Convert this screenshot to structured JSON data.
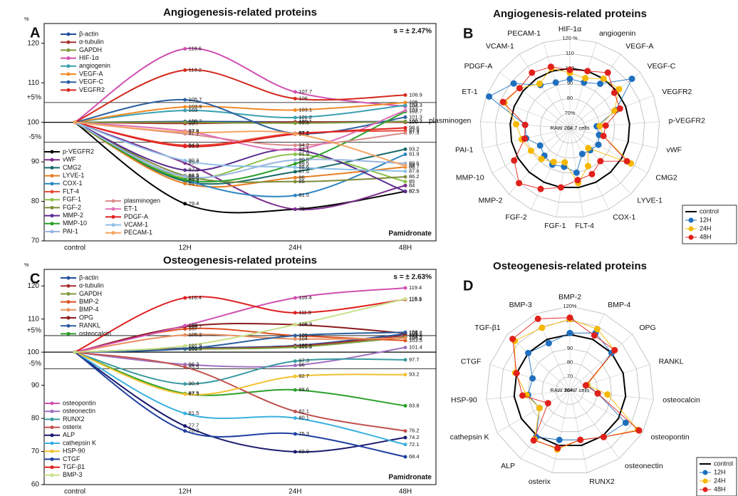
{
  "chart_data": [
    {
      "type": "line",
      "title": "Angiogenesis-related proteins",
      "panel_label": "A",
      "note": "s = ± 2.47%",
      "treatment": "Pamidronate",
      "y_unit": "%",
      "categories": [
        "control",
        "12H",
        "24H",
        "48H"
      ],
      "ylim": [
        70,
        125
      ],
      "yticks": [
        70,
        80,
        90,
        100,
        110,
        120
      ],
      "baseline": 100,
      "ref_lines": [
        {
          "value": 105,
          "label": "+5%"
        },
        {
          "value": 95,
          "label": "-5%"
        }
      ],
      "series": [
        {
          "name": "β-actin",
          "color": "#1f4e9a",
          "values": [
            100,
            100.2,
            100.1,
            100.2
          ]
        },
        {
          "name": "α-tubulin",
          "color": "#a83232",
          "values": [
            100,
            99.7,
            100.1,
            100.0
          ]
        },
        {
          "name": "GAPDH",
          "color": "#7a9a3a",
          "values": [
            100,
            100.0,
            99.8,
            100.2
          ]
        },
        {
          "name": "HIF-1α",
          "color": "#d050b0",
          "values": [
            100,
            118.6,
            107.7,
            104.0
          ]
        },
        {
          "name": "angiogenin",
          "color": "#3aa0b0",
          "values": [
            100,
            103.0,
            101.2,
            104.3
          ]
        },
        {
          "name": "VEGF-A",
          "color": "#f08a24",
          "values": [
            100,
            103.9,
            103.1,
            105.0
          ]
        },
        {
          "name": "VEGF-C",
          "color": "#2b5f9e",
          "values": [
            100,
            105.7,
            97.2,
            101.3
          ]
        },
        {
          "name": "VEGFR2",
          "color": "#d42a1e",
          "values": [
            100,
            113.2,
            106.0,
            106.9
          ]
        },
        {
          "name": "p-VEGFR2",
          "color": "#000000",
          "values": [
            100,
            79.4,
            78.0,
            82.5
          ]
        },
        {
          "name": "vWF",
          "color": "#7b2c8f",
          "values": [
            100,
            89.7,
            78.0,
            84.0
          ]
        },
        {
          "name": "CMG2",
          "color": "#1a6b6b",
          "values": [
            100,
            85.1,
            87.5,
            93.2
          ]
        },
        {
          "name": "LYVE-1",
          "color": "#e67e22",
          "values": [
            100,
            84.5,
            86.0,
            88.7
          ]
        },
        {
          "name": "COX-1",
          "color": "#2e86c1",
          "values": [
            100,
            85.5,
            81.5,
            91.9
          ]
        },
        {
          "name": "FLT-4",
          "color": "#e74c3c",
          "values": [
            100,
            94.2,
            97.2,
            97.9
          ]
        },
        {
          "name": "FGF-1",
          "color": "#8bc34a",
          "values": [
            100,
            85.9,
            91.9,
            85.0
          ]
        },
        {
          "name": "FGF-2",
          "color": "#7f8c3a",
          "values": [
            100,
            86.5,
            85.0,
            86.2
          ]
        },
        {
          "name": "MMP-2",
          "color": "#5b2c8f",
          "values": [
            100,
            87.9,
            93.1,
            82.5
          ]
        },
        {
          "name": "MMP-10",
          "color": "#2ca02c",
          "values": [
            100,
            85.5,
            89.5,
            102.7
          ]
        },
        {
          "name": "PAI-1",
          "color": "#9bb5e0",
          "values": [
            100,
            86.3,
            90.5,
            89.6
          ]
        },
        {
          "name": "plasminogen",
          "color": "#d98c8c",
          "values": [
            100,
            97.1,
            94.2,
            97.3
          ]
        },
        {
          "name": "ET-1",
          "color": "#e070b8",
          "values": [
            100,
            97.8,
            93.1,
            103.0
          ]
        },
        {
          "name": "PDGF-A",
          "color": "#e02020",
          "values": [
            100,
            93.9,
            97.0,
            98.6
          ]
        },
        {
          "name": "VCAM-1",
          "color": "#8fc0e8",
          "values": [
            100,
            90.3,
            88.6,
            87.6
          ]
        },
        {
          "name": "PECAM-1",
          "color": "#f4a460",
          "values": [
            100,
            97.5,
            97.1,
            89.0
          ]
        }
      ]
    },
    {
      "type": "radar",
      "title": "Angiogenesis-related proteins",
      "panel_label": "B",
      "center_label": "RAW 264.7 cells",
      "categories": [
        "HIF-1α",
        "angiogenin",
        "VEGF-A",
        "VEGF-C",
        "VEGFR2",
        "p-VEGFR2",
        "vWF",
        "CMG2",
        "LYVE-1",
        "COX-1",
        "FLT-4",
        "FGF-1",
        "FGF-2",
        "MMP-2",
        "MMP-10",
        "PAI-1",
        "plasminogen",
        "ET-1",
        "PDGF-A",
        "VCAM-1",
        "PECAM-1"
      ],
      "rlim": [
        60,
        120
      ],
      "rticks": [
        {
          "value": 70,
          "label": "70%"
        },
        80,
        90,
        100,
        110,
        {
          "value": 120,
          "label": "120 %"
        }
      ],
      "series": [
        {
          "name": "control",
          "color": "#000000",
          "marker": false,
          "values": [
            100,
            100,
            100,
            100,
            100,
            100,
            100,
            100,
            100,
            100,
            100,
            100,
            100,
            100,
            100,
            100,
            100,
            100,
            100,
            100,
            100
          ]
        },
        {
          "name": "12H",
          "color": "#1f6fbf",
          "values": [
            93,
            92,
            96,
            113,
            93,
            78,
            80,
            82,
            80,
            79,
            90,
            86,
            87,
            85,
            83,
            90,
            90,
            118,
            108,
            95,
            92
          ]
        },
        {
          "name": "24H",
          "color": "#f5b800",
          "values": [
            97,
            95,
            100,
            102,
            92,
            80,
            83,
            107,
            78,
            88,
            97,
            83,
            85,
            88,
            90,
            93,
            96,
            107,
            103,
            96,
            102
          ]
        },
        {
          "name": "48H",
          "color": "#e0201b",
          "values": [
            99,
            100,
            105,
            98,
            96,
            84,
            83,
            104,
            90,
            94,
            95,
            100,
            105,
            110,
            103,
            91,
            90,
            108,
            103,
            105,
            103
          ]
        }
      ]
    },
    {
      "type": "line",
      "title": "Osteogenesis-related proteins",
      "panel_label": "C",
      "note": "s = ± 2.63%",
      "treatment": "Pamidronate",
      "y_unit": "%",
      "categories": [
        "control",
        "12H",
        "24H",
        "48H"
      ],
      "ylim": [
        60,
        125
      ],
      "yticks": [
        60,
        70,
        80,
        90,
        100,
        110,
        120
      ],
      "baseline": 100,
      "ref_lines": [
        {
          "value": 105,
          "label": "+5%"
        },
        {
          "value": 95,
          "label": "-5%"
        }
      ],
      "series": [
        {
          "name": "β-actin",
          "color": "#1f4e9a",
          "values": [
            100,
            101.2,
            102.0,
            105.5
          ]
        },
        {
          "name": "α-tubulin",
          "color": "#a83232",
          "values": [
            100,
            101.0,
            101.8,
            105.0
          ]
        },
        {
          "name": "GAPDH",
          "color": "#7a9a3a",
          "values": [
            100,
            100.9,
            101.5,
            104.5
          ]
        },
        {
          "name": "BMP-2",
          "color": "#e05020",
          "values": [
            100,
            107.0,
            105.0,
            103.5
          ]
        },
        {
          "name": "BMP-4",
          "color": "#e89060",
          "values": [
            100,
            105.2,
            104.0,
            104.2
          ]
        },
        {
          "name": "OPG",
          "color": "#8b1a1a",
          "values": [
            100,
            107.7,
            108.3,
            105.7
          ]
        },
        {
          "name": "RANKL",
          "color": "#2b5f9e",
          "values": [
            100,
            101.0,
            105.0,
            106.0
          ]
        },
        {
          "name": "osteocalcin",
          "color": "#2ca02c",
          "values": [
            100,
            87.5,
            88.6,
            83.8
          ]
        },
        {
          "name": "osteopontin",
          "color": "#d050b0",
          "values": [
            100,
            108.0,
            116.4,
            119.4
          ]
        },
        {
          "name": "osteonectin",
          "color": "#a070c0",
          "values": [
            100,
            96.3,
            96.0,
            101.4
          ]
        },
        {
          "name": "RUNX2",
          "color": "#3a9aa0",
          "values": [
            100,
            90.4,
            97.3,
            97.7
          ]
        },
        {
          "name": "osterix",
          "color": "#c0504d",
          "values": [
            100,
            95.5,
            82.1,
            76.2
          ]
        },
        {
          "name": "ALP",
          "color": "#1a1a6e",
          "values": [
            100,
            77.7,
            69.9,
            74.2
          ]
        },
        {
          "name": "cathepsin K",
          "color": "#3ab0e0",
          "values": [
            100,
            81.5,
            80.1,
            72.1
          ]
        },
        {
          "name": "HSP-90",
          "color": "#f2c12e",
          "values": [
            100,
            87.3,
            92.7,
            93.2
          ]
        },
        {
          "name": "CTGF",
          "color": "#1f3f9f",
          "values": [
            100,
            76.2,
            75.3,
            68.4
          ]
        },
        {
          "name": "TGF-β1",
          "color": "#e02020",
          "values": [
            100,
            116.4,
            111.9,
            115.9
          ]
        },
        {
          "name": "BMP-3",
          "color": "#c8e08a",
          "values": [
            100,
            101.9,
            108.3,
            116.1
          ]
        }
      ]
    },
    {
      "type": "radar",
      "title": "Osteogenesis-related proteins",
      "panel_label": "D",
      "center_label": "RAW 264.7 cells",
      "categories": [
        "BMP-2",
        "BMP-4",
        "OPG",
        "RANKL",
        "osteocalcin",
        "osteopontin",
        "osteonectin",
        "RUNX2",
        "osterix",
        "ALP",
        "cathepsin K",
        "HSP-90",
        "CTGF",
        "TGF-β1",
        "BMP-3"
      ],
      "rlim": [
        60,
        120
      ],
      "rticks": [
        {
          "value": 60,
          "label": "60%"
        },
        70,
        80,
        90,
        100,
        110,
        {
          "value": 120,
          "label": "120%"
        }
      ],
      "series": [
        {
          "name": "control",
          "color": "#000000",
          "marker": false,
          "values": [
            100,
            100,
            100,
            100,
            100,
            100,
            100,
            100,
            100,
            100,
            100,
            100,
            100,
            100,
            100
          ]
        },
        {
          "name": "12H",
          "color": "#1f6fbf",
          "values": [
            101,
            105,
            100,
            73,
            80,
            106,
            101,
            96,
            96,
            101,
            85,
            90,
            88,
            100,
            97
          ]
        },
        {
          "name": "24H",
          "color": "#f5b800",
          "values": [
            111,
            108,
            103,
            73,
            87,
            116,
            101,
            96,
            103,
            103,
            85,
            91,
            101,
            113,
            109
          ]
        },
        {
          "name": "48H",
          "color": "#e0201b",
          "values": [
            112,
            103,
            103,
            72,
            80,
            117,
            101,
            96,
            102,
            104,
            78,
            94,
            100,
            115,
            116
          ]
        }
      ]
    }
  ]
}
